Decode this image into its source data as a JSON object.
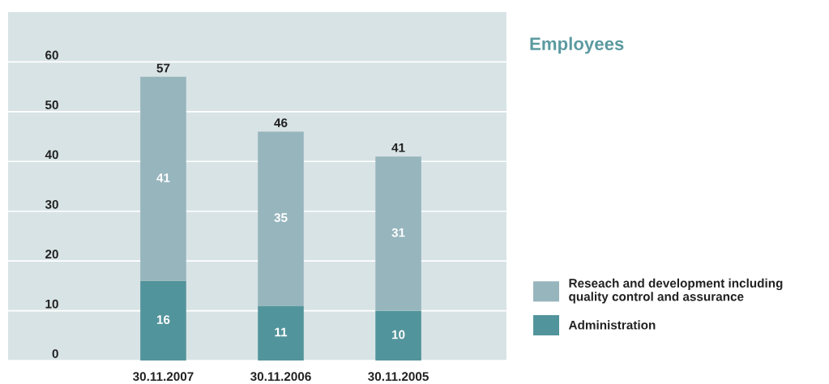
{
  "chart_data": {
    "type": "bar",
    "title": "Employees",
    "stacked": true,
    "categories": [
      "30.11.2007",
      "30.11.2006",
      "30.11.2005"
    ],
    "series": [
      {
        "name": "Administration",
        "color": "#52949b",
        "values": [
          16,
          11,
          10
        ]
      },
      {
        "name": "Reseach and development including quality control and assurance",
        "color": "#97b5bd",
        "values": [
          41,
          35,
          31
        ]
      }
    ],
    "ylim": [
      0,
      70
    ],
    "yticks": [
      0,
      10,
      20,
      30,
      40,
      50,
      60
    ],
    "grid": "y",
    "legend": "right",
    "data_labels": true,
    "totals": [
      "57",
      "46",
      "41"
    ]
  }
}
